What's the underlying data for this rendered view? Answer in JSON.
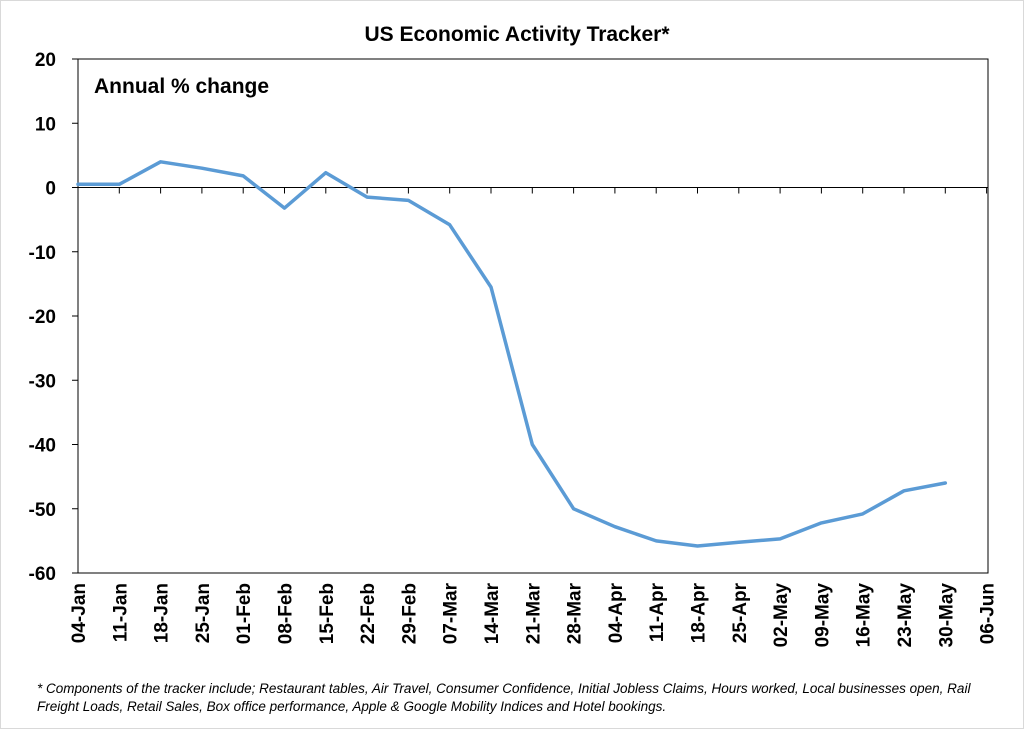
{
  "chart_data": {
    "type": "line",
    "title": "US Economic Activity Tracker*",
    "ylabel": "Annual % change",
    "xlabel": "",
    "ylim": [
      -60,
      20
    ],
    "yticks": [
      "20",
      "10",
      "0",
      "-10",
      "-20",
      "-30",
      "-40",
      "-50",
      "-60"
    ],
    "categories": [
      "04-Jan",
      "11-Jan",
      "18-Jan",
      "25-Jan",
      "01-Feb",
      "08-Feb",
      "15-Feb",
      "22-Feb",
      "29-Feb",
      "07-Mar",
      "14-Mar",
      "21-Mar",
      "28-Mar",
      "04-Apr",
      "11-Apr",
      "18-Apr",
      "25-Apr",
      "02-May",
      "09-May",
      "16-May",
      "23-May",
      "30-May",
      "06-Jun"
    ],
    "series": [
      {
        "values": [
          0.5,
          0.5,
          4.0,
          3.0,
          1.8,
          -3.2,
          2.3,
          -1.5,
          -2.0,
          -5.8,
          -15.5,
          -40.0,
          -50.0,
          -52.8,
          -55.0,
          -55.8,
          -55.2,
          -54.7,
          -52.2,
          -50.8,
          -47.2,
          -46.0,
          null
        ]
      }
    ],
    "line_color": "#5b9bd5",
    "grid": false,
    "legend": "none",
    "footnote": "* Components of the tracker include; Restaurant tables, Air Travel, Consumer Confidence, Initial Jobless Claims, Hours worked, Local businesses open, Rail Freight Loads, Retail Sales, Box office performance, Apple & Google Mobility Indices and Hotel bookings."
  }
}
